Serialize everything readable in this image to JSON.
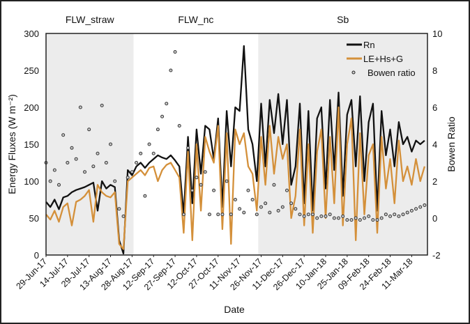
{
  "chart_data": {
    "type": "line",
    "xlabel": "Date",
    "ylabel": "Energy Fluxes (W m⁻²)",
    "y2label": "Bowen Ratio",
    "xlim": [
      "2017-06-29",
      "2018-03-22"
    ],
    "ylim": [
      0,
      300
    ],
    "y2lim": [
      -2,
      10
    ],
    "yticks": [
      "0",
      "50",
      "100",
      "150",
      "200",
      "250",
      "300"
    ],
    "y2ticks": [
      "-2",
      "0",
      "2",
      "4",
      "6",
      "8",
      "10"
    ],
    "xtick_labels": [
      "29-Jun-17",
      "14-Jul-17",
      "29-Jul-17",
      "13-Aug-17",
      "28-Aug-17",
      "12-Sep-17",
      "27-Sep-17",
      "12-Oct-17",
      "27-Oct-17",
      "11-Nov-17",
      "26-Nov-17",
      "11-Dec-17",
      "26-Dec-17",
      "10-Jan-18",
      "25-Jan-18",
      "09-Feb-18",
      "24-Feb-18",
      "11-Mar-18"
    ],
    "xtick_dates": [
      "2017-06-29",
      "2017-07-14",
      "2017-07-29",
      "2017-08-13",
      "2017-08-28",
      "2017-09-12",
      "2017-09-27",
      "2017-10-12",
      "2017-10-27",
      "2017-11-11",
      "2017-11-26",
      "2017-12-11",
      "2017-12-26",
      "2018-01-10",
      "2018-01-25",
      "2018-02-09",
      "2018-02-24",
      "2018-03-11"
    ],
    "grid": false,
    "legend_position": "top-right",
    "regions": [
      {
        "label": "FLW_straw",
        "start": "2017-06-29",
        "end": "2017-08-29",
        "shaded": true
      },
      {
        "label": "FLW_nc",
        "start": "2017-08-29",
        "end": "2017-11-24",
        "shaded": false
      },
      {
        "label": "Sb",
        "start": "2017-11-24",
        "end": "2018-03-22",
        "shaded": true
      }
    ],
    "x": [
      "2017-06-29",
      "2017-07-02",
      "2017-07-05",
      "2017-07-08",
      "2017-07-11",
      "2017-07-14",
      "2017-07-17",
      "2017-07-20",
      "2017-07-23",
      "2017-07-26",
      "2017-07-29",
      "2017-08-01",
      "2017-08-04",
      "2017-08-07",
      "2017-08-10",
      "2017-08-13",
      "2017-08-16",
      "2017-08-19",
      "2017-08-22",
      "2017-08-25",
      "2017-08-28",
      "2017-08-31",
      "2017-09-03",
      "2017-09-06",
      "2017-09-09",
      "2017-09-12",
      "2017-09-15",
      "2017-09-18",
      "2017-09-21",
      "2017-09-24",
      "2017-09-27",
      "2017-09-30",
      "2017-10-03",
      "2017-10-06",
      "2017-10-09",
      "2017-10-12",
      "2017-10-15",
      "2017-10-18",
      "2017-10-21",
      "2017-10-24",
      "2017-10-27",
      "2017-10-30",
      "2017-11-02",
      "2017-11-05",
      "2017-11-08",
      "2017-11-11",
      "2017-11-14",
      "2017-11-17",
      "2017-11-20",
      "2017-11-23",
      "2017-11-26",
      "2017-11-29",
      "2017-12-02",
      "2017-12-05",
      "2017-12-08",
      "2017-12-11",
      "2017-12-14",
      "2017-12-17",
      "2017-12-20",
      "2017-12-23",
      "2017-12-26",
      "2017-12-29",
      "2018-01-01",
      "2018-01-04",
      "2018-01-07",
      "2018-01-10",
      "2018-01-13",
      "2018-01-16",
      "2018-01-19",
      "2018-01-22",
      "2018-01-25",
      "2018-01-28",
      "2018-01-31",
      "2018-02-03",
      "2018-02-06",
      "2018-02-09",
      "2018-02-12",
      "2018-02-15",
      "2018-02-18",
      "2018-02-21",
      "2018-02-24",
      "2018-02-27",
      "2018-03-02",
      "2018-03-05",
      "2018-03-08",
      "2018-03-11",
      "2018-03-14",
      "2018-03-17",
      "2018-03-20"
    ],
    "series": [
      {
        "name": "Rn",
        "axis": "left",
        "color": "#111111",
        "style": "line",
        "values": [
          72,
          65,
          75,
          62,
          78,
          80,
          85,
          88,
          90,
          92,
          95,
          98,
          60,
          100,
          90,
          95,
          92,
          20,
          2,
          115,
          108,
          120,
          125,
          118,
          125,
          130,
          135,
          132,
          130,
          135,
          128,
          120,
          55,
          160,
          70,
          170,
          110,
          175,
          170,
          130,
          185,
          65,
          195,
          120,
          200,
          195,
          283,
          170,
          150,
          100,
          205,
          120,
          210,
          165,
          218,
          150,
          210,
          95,
          120,
          205,
          70,
          195,
          60,
          185,
          200,
          90,
          210,
          115,
          220,
          80,
          190,
          210,
          120,
          215,
          100,
          180,
          205,
          60,
          195,
          135,
          170,
          120,
          180,
          150,
          160,
          140,
          155,
          150,
          155
        ]
      },
      {
        "name": "LE+Hs+G",
        "axis": "left",
        "color": "#d4903a",
        "style": "line",
        "values": [
          55,
          48,
          60,
          45,
          65,
          70,
          40,
          72,
          75,
          80,
          88,
          45,
          95,
          85,
          80,
          78,
          85,
          15,
          8,
          100,
          105,
          110,
          115,
          108,
          118,
          120,
          100,
          115,
          122,
          125,
          115,
          105,
          30,
          140,
          20,
          150,
          60,
          160,
          140,
          125,
          175,
          35,
          165,
          15,
          170,
          150,
          165,
          120,
          110,
          60,
          160,
          95,
          175,
          110,
          160,
          130,
          150,
          50,
          80,
          170,
          40,
          150,
          30,
          140,
          170,
          50,
          160,
          70,
          200,
          40,
          150,
          185,
          20,
          165,
          55,
          135,
          150,
          30,
          160,
          90,
          130,
          70,
          155,
          100,
          120,
          95,
          130,
          100,
          120
        ]
      },
      {
        "name": "Bowen ratio",
        "axis": "right",
        "color": "#333333",
        "style": "markers",
        "values": [
          3.0,
          2.0,
          2.6,
          1.8,
          4.5,
          3.0,
          3.8,
          3.2,
          6.0,
          2.5,
          4.8,
          2.8,
          3.5,
          6.1,
          3.0,
          4.0,
          2.0,
          0.5,
          0.1,
          2.2,
          2.5,
          3.0,
          3.5,
          1.2,
          4.0,
          3.5,
          4.8,
          5.5,
          6.2,
          8.0,
          9.0,
          5.0,
          0.2,
          3.8,
          1.5,
          2.2,
          1.8,
          2.5,
          0.2,
          1.5,
          0.2,
          0.2,
          2.0,
          0.2,
          1.0,
          0.5,
          0.3,
          1.5,
          1.0,
          0.2,
          0.6,
          0.8,
          0.3,
          1.8,
          0.4,
          0.6,
          1.5,
          0.8,
          0.5,
          0.2,
          0.1,
          0.2,
          0.2,
          0.0,
          0.1,
          0.1,
          0.2,
          0.0,
          0.0,
          0.1,
          -0.1,
          -0.1,
          0.0,
          -0.1,
          0.0,
          0.1,
          -0.1,
          -0.1,
          0.0,
          0.2,
          0.1,
          0.2,
          0.1,
          0.2,
          0.3,
          0.4,
          0.5,
          0.6,
          0.7
        ]
      }
    ]
  }
}
